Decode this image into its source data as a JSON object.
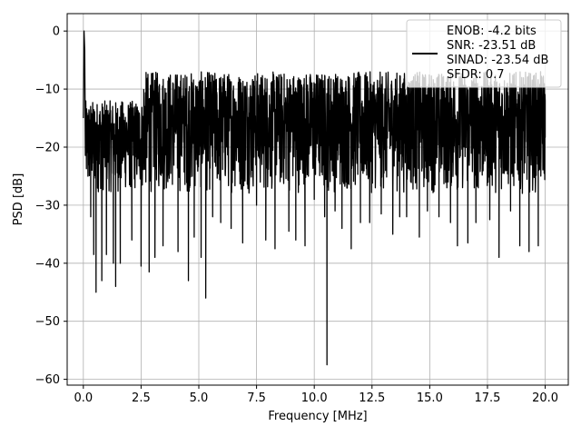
{
  "chart_data": {
    "type": "line",
    "xlabel": "Frequency [MHz]",
    "ylabel": "PSD [dB]",
    "xlim": [
      -0.7,
      21.0
    ],
    "ylim": [
      -61.0,
      3.0
    ],
    "x_ticks": [
      0.0,
      2.5,
      5.0,
      7.5,
      10.0,
      12.5,
      15.0,
      17.5,
      20.0
    ],
    "x_tick_labels": [
      "0.0",
      "2.5",
      "5.0",
      "7.5",
      "10.0",
      "12.5",
      "15.0",
      "17.5",
      "20.0"
    ],
    "y_ticks": [
      0,
      -10,
      -20,
      -30,
      -40,
      -50,
      -60
    ],
    "y_tick_labels": [
      "0",
      "−10",
      "−20",
      "−30",
      "−40",
      "−50",
      "−60"
    ],
    "grid": true,
    "legend_position": "top-right",
    "series_color": "#000000",
    "legend": {
      "lines": [
        "ENOB: -4.2 bits",
        "SNR: -23.51 dB",
        "SINAD: -23.54 dB",
        "SFDR: 0.7"
      ]
    },
    "noise_floor": {
      "x_range": [
        0.0,
        20.0
      ],
      "typical_range_db": [
        -25,
        -10
      ],
      "note_points": "dense noise spectrum"
    },
    "series": [
      {
        "x": [
          0.0,
          0.03,
          0.06,
          0.1,
          0.2,
          0.32,
          0.45,
          0.55,
          0.8,
          1.0,
          1.3,
          1.4,
          1.6,
          2.1,
          2.5,
          2.85,
          3.1,
          3.45,
          4.1,
          4.55,
          4.8,
          5.1,
          5.3,
          5.6,
          5.95,
          6.4,
          6.9,
          7.5,
          7.9,
          8.3,
          8.9,
          9.2,
          9.6,
          10.0,
          10.45,
          10.55,
          10.9,
          11.2,
          11.6,
          12.0,
          12.4,
          12.9,
          13.4,
          13.7,
          14.0,
          14.55,
          14.9,
          15.4,
          15.9,
          16.2,
          16.65,
          17.0,
          17.6,
          18.0,
          18.5,
          18.9,
          19.3,
          19.7,
          20.0
        ],
        "y": [
          -15.0,
          0.0,
          -3.5,
          -18.0,
          -25.0,
          -32.0,
          -38.5,
          -45.0,
          -43.0,
          -38.5,
          -40.0,
          -44.0,
          -40.0,
          -36.0,
          -40.5,
          -41.5,
          -39.0,
          -37.0,
          -38.0,
          -43.0,
          -35.5,
          -39.0,
          -46.0,
          -32.0,
          -33.0,
          -34.0,
          -36.5,
          -30.0,
          -36.0,
          -37.5,
          -34.5,
          -36.0,
          -37.0,
          -29.0,
          -32.0,
          -57.5,
          -31.0,
          -34.0,
          -37.5,
          -33.0,
          -33.0,
          -31.5,
          -35.0,
          -32.0,
          -32.0,
          -35.5,
          -31.0,
          -32.0,
          -33.0,
          -37.0,
          -36.5,
          -33.0,
          -32.5,
          -39.0,
          -31.0,
          -37.0,
          -38.0,
          -37.0,
          -12.0
        ]
      }
    ]
  }
}
